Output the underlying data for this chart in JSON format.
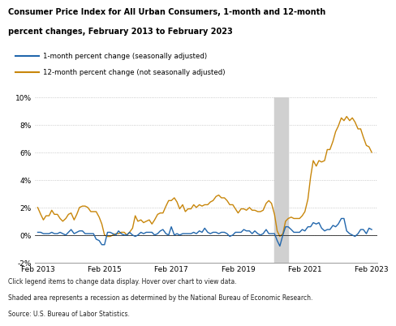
{
  "title_line1": "Consumer Price Index for All Urban Consumers, 1-month and 12-month",
  "title_line2": "percent changes, February 2013 to February 2023",
  "legend_1month": "1-month percent change (seasonally adjusted)",
  "legend_12month": "12-month percent change (not seasonally adjusted)",
  "color_1month": "#2166ac",
  "color_12month": "#c8860a",
  "recession_start": 2020.17,
  "recession_end": 2020.58,
  "recession_color": "#d0d0d0",
  "bg_color": "#ffffff",
  "fig_bg_color": "#ffffff",
  "ylim": [
    -2,
    10
  ],
  "yticks": [
    -2,
    0,
    2,
    4,
    6,
    8,
    10
  ],
  "ytick_labels": [
    "-2%",
    "0%",
    "2%",
    "4%",
    "6%",
    "8%",
    "10%"
  ],
  "xlim_start": 2013.0,
  "xlim_end": 2023.25,
  "footer1": "Click legend items to change data display. Hover over chart to view data.",
  "footer2": "Shaded area represents a recession as determined by the National Bureau of Economic Research.",
  "footer3": "Source: U.S. Bureau of Labor Statistics.",
  "dates_1month": [
    2013.08,
    2013.17,
    2013.25,
    2013.33,
    2013.42,
    2013.5,
    2013.58,
    2013.67,
    2013.75,
    2013.83,
    2013.92,
    2014.0,
    2014.08,
    2014.17,
    2014.25,
    2014.33,
    2014.42,
    2014.5,
    2014.58,
    2014.67,
    2014.75,
    2014.83,
    2014.92,
    2015.0,
    2015.08,
    2015.17,
    2015.25,
    2015.33,
    2015.42,
    2015.5,
    2015.58,
    2015.67,
    2015.75,
    2015.83,
    2015.92,
    2016.0,
    2016.08,
    2016.17,
    2016.25,
    2016.33,
    2016.42,
    2016.5,
    2016.58,
    2016.67,
    2016.75,
    2016.83,
    2016.92,
    2017.0,
    2017.08,
    2017.17,
    2017.25,
    2017.33,
    2017.42,
    2017.5,
    2017.58,
    2017.67,
    2017.75,
    2017.83,
    2017.92,
    2018.0,
    2018.08,
    2018.17,
    2018.25,
    2018.33,
    2018.42,
    2018.5,
    2018.58,
    2018.67,
    2018.75,
    2018.83,
    2018.92,
    2019.0,
    2019.08,
    2019.17,
    2019.25,
    2019.33,
    2019.42,
    2019.5,
    2019.58,
    2019.67,
    2019.75,
    2019.83,
    2019.92,
    2020.0,
    2020.08,
    2020.17,
    2020.25,
    2020.33,
    2020.42,
    2020.5,
    2020.58,
    2020.67,
    2020.75,
    2020.83,
    2020.92,
    2021.0,
    2021.08,
    2021.17,
    2021.25,
    2021.33,
    2021.42,
    2021.5,
    2021.58,
    2021.67,
    2021.75,
    2021.83,
    2021.92,
    2022.0,
    2022.08,
    2022.17,
    2022.25,
    2022.33,
    2022.42,
    2022.5,
    2022.58,
    2022.67,
    2022.75,
    2022.83,
    2022.92,
    2023.0,
    2023.08
  ],
  "values_1month": [
    0.2,
    0.2,
    0.1,
    0.1,
    0.1,
    0.2,
    0.1,
    0.1,
    0.2,
    0.1,
    0.0,
    0.2,
    0.4,
    0.1,
    0.2,
    0.3,
    0.3,
    0.1,
    0.1,
    0.1,
    0.1,
    -0.3,
    -0.4,
    -0.7,
    -0.7,
    0.2,
    0.2,
    0.1,
    0.0,
    0.3,
    0.1,
    0.0,
    0.0,
    0.2,
    0.0,
    -0.1,
    0.0,
    0.2,
    0.1,
    0.2,
    0.2,
    0.2,
    0.0,
    0.1,
    0.3,
    0.4,
    0.1,
    0.0,
    0.6,
    0.0,
    0.1,
    0.0,
    0.1,
    0.1,
    0.1,
    0.1,
    0.2,
    0.1,
    0.3,
    0.2,
    0.5,
    0.2,
    0.1,
    0.2,
    0.2,
    0.1,
    0.2,
    0.2,
    0.1,
    -0.1,
    0.0,
    0.2,
    0.2,
    0.2,
    0.4,
    0.3,
    0.3,
    0.1,
    0.3,
    0.1,
    0.0,
    0.1,
    0.4,
    0.1,
    0.1,
    0.1,
    -0.4,
    -0.8,
    0.0,
    0.6,
    0.6,
    0.4,
    0.2,
    0.2,
    0.2,
    0.4,
    0.3,
    0.6,
    0.6,
    0.9,
    0.8,
    0.9,
    0.5,
    0.3,
    0.4,
    0.4,
    0.7,
    0.6,
    0.8,
    1.2,
    1.2,
    0.3,
    0.1,
    0.0,
    -0.1,
    0.1,
    0.4,
    0.4,
    0.1,
    0.5,
    0.4
  ],
  "dates_12month": [
    2013.08,
    2013.17,
    2013.25,
    2013.33,
    2013.42,
    2013.5,
    2013.58,
    2013.67,
    2013.75,
    2013.83,
    2013.92,
    2014.0,
    2014.08,
    2014.17,
    2014.25,
    2014.33,
    2014.42,
    2014.5,
    2014.58,
    2014.67,
    2014.75,
    2014.83,
    2014.92,
    2015.0,
    2015.08,
    2015.17,
    2015.25,
    2015.33,
    2015.42,
    2015.5,
    2015.58,
    2015.67,
    2015.75,
    2015.83,
    2015.92,
    2016.0,
    2016.08,
    2016.17,
    2016.25,
    2016.33,
    2016.42,
    2016.5,
    2016.58,
    2016.67,
    2016.75,
    2016.83,
    2016.92,
    2017.0,
    2017.08,
    2017.17,
    2017.25,
    2017.33,
    2017.42,
    2017.5,
    2017.58,
    2017.67,
    2017.75,
    2017.83,
    2017.92,
    2018.0,
    2018.08,
    2018.17,
    2018.25,
    2018.33,
    2018.42,
    2018.5,
    2018.58,
    2018.67,
    2018.75,
    2018.83,
    2018.92,
    2019.0,
    2019.08,
    2019.17,
    2019.25,
    2019.33,
    2019.42,
    2019.5,
    2019.58,
    2019.67,
    2019.75,
    2019.83,
    2019.92,
    2020.0,
    2020.08,
    2020.17,
    2020.25,
    2020.33,
    2020.42,
    2020.5,
    2020.58,
    2020.67,
    2020.75,
    2020.83,
    2020.92,
    2021.0,
    2021.08,
    2021.17,
    2021.25,
    2021.33,
    2021.42,
    2021.5,
    2021.58,
    2021.67,
    2021.75,
    2021.83,
    2021.92,
    2022.0,
    2022.08,
    2022.17,
    2022.25,
    2022.33,
    2022.42,
    2022.5,
    2022.58,
    2022.67,
    2022.75,
    2022.83,
    2022.92,
    2023.0,
    2023.08
  ],
  "values_12month": [
    2.0,
    1.5,
    1.1,
    1.4,
    1.4,
    1.8,
    1.5,
    1.5,
    1.2,
    1.0,
    1.2,
    1.5,
    1.6,
    1.1,
    1.5,
    2.0,
    2.1,
    2.1,
    2.0,
    1.7,
    1.7,
    1.7,
    1.3,
    0.8,
    0.0,
    -0.1,
    -0.1,
    0.0,
    0.1,
    0.1,
    0.2,
    0.2,
    0.0,
    0.2,
    0.5,
    1.4,
    1.0,
    1.1,
    0.9,
    1.0,
    1.1,
    0.8,
    1.1,
    1.5,
    1.6,
    1.6,
    2.1,
    2.5,
    2.5,
    2.7,
    2.4,
    1.9,
    2.2,
    1.7,
    1.9,
    1.9,
    2.2,
    2.0,
    2.2,
    2.1,
    2.2,
    2.2,
    2.4,
    2.5,
    2.8,
    2.9,
    2.7,
    2.7,
    2.5,
    2.2,
    2.2,
    1.9,
    1.6,
    1.9,
    1.9,
    1.8,
    2.0,
    1.8,
    1.8,
    1.7,
    1.7,
    1.8,
    2.3,
    2.5,
    2.3,
    1.5,
    0.3,
    -0.1,
    0.1,
    1.0,
    1.2,
    1.3,
    1.2,
    1.2,
    1.2,
    1.4,
    1.7,
    2.6,
    4.2,
    5.4,
    5.0,
    5.4,
    5.3,
    5.4,
    6.2,
    6.2,
    6.8,
    7.5,
    7.9,
    8.5,
    8.3,
    8.6,
    8.3,
    8.5,
    8.2,
    7.7,
    7.7,
    7.1,
    6.5,
    6.4,
    6.0
  ],
  "xtick_positions": [
    2013.08,
    2015.08,
    2017.08,
    2019.08,
    2021.08,
    2023.08
  ],
  "xtick_labels": [
    "Feb 2013",
    "Feb 2015",
    "Feb 2017",
    "Feb 2019",
    "Feb 2021",
    "Feb 2023"
  ]
}
